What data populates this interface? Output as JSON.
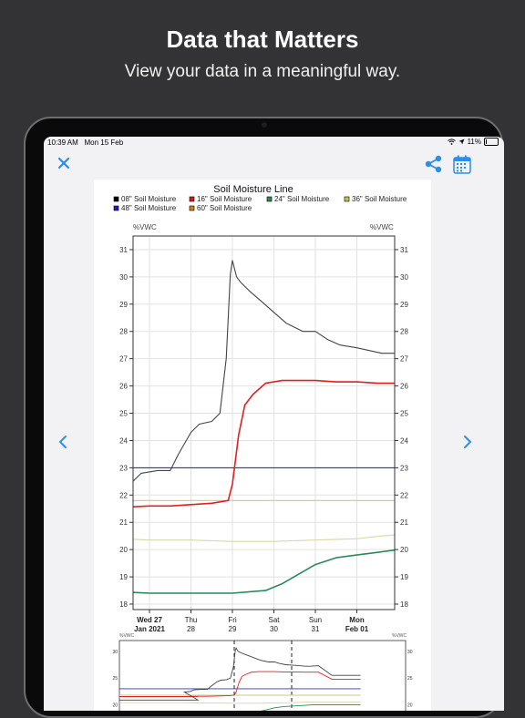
{
  "promo": {
    "title": "Data that Matters",
    "subtitle": "View your data in a meaningful way."
  },
  "status_bar": {
    "time": "10:39 AM",
    "date": "Mon 15 Feb",
    "battery": "11%",
    "battery_level": 0.11
  },
  "toolbar": {
    "close_icon": "close-icon",
    "share_icon": "share-icon",
    "calendar_icon": "calendar-icon",
    "prev_icon": "chevron-left-icon",
    "next_icon": "chevron-right-icon",
    "accent": "#2b8ee8"
  },
  "chart_data": {
    "type": "line",
    "title": "Soil Moisture Line",
    "ylabel_left": "%VWC",
    "ylabel_right": "%VWC",
    "ylim": [
      17.8,
      31.5
    ],
    "yticks": [
      18,
      19,
      20,
      21,
      22,
      23,
      24,
      25,
      26,
      27,
      28,
      29,
      30,
      31
    ],
    "xlim": [
      0,
      6.3
    ],
    "xticks": [
      {
        "x": 0,
        "label": "Wed 27",
        "sub": "Jan 2021",
        "bold": true
      },
      {
        "x": 1,
        "label": "Thu",
        "sub": "28",
        "bold": false
      },
      {
        "x": 2,
        "label": "Fri",
        "sub": "29",
        "bold": false
      },
      {
        "x": 3,
        "label": "Sat",
        "sub": "30",
        "bold": false
      },
      {
        "x": 4,
        "label": "Sun",
        "sub": "31",
        "bold": false
      },
      {
        "x": 5,
        "label": "Mon",
        "sub": "Feb 01",
        "bold": true
      }
    ],
    "grid": true,
    "legend_position": "top",
    "series": [
      {
        "name": "08\" Soil Moisture",
        "color": "#000000",
        "stroke": "#444444",
        "x": [
          -0.7,
          -0.4,
          -0.2,
          0.2,
          0.5,
          0.7,
          1.0,
          1.2,
          1.5,
          1.7,
          1.85,
          1.9,
          1.95,
          2.0,
          2.1,
          2.2,
          2.4,
          2.7,
          3.0,
          3.3,
          3.7,
          4.0,
          4.3,
          4.6,
          5.0,
          5.3,
          5.6,
          5.9,
          6.3
        ],
        "y": [
          22.4,
          22.5,
          22.8,
          22.9,
          22.9,
          23.5,
          24.3,
          24.6,
          24.7,
          25.0,
          27.0,
          28.5,
          30.1,
          30.6,
          30.0,
          29.8,
          29.5,
          29.1,
          28.7,
          28.3,
          28.0,
          28.0,
          27.7,
          27.5,
          27.4,
          27.3,
          27.2,
          27.2,
          27.3
        ]
      },
      {
        "name": "16\" Soil Moisture",
        "color": "#cc2020",
        "stroke": "#e02020",
        "x": [
          -0.7,
          0.0,
          0.5,
          1.0,
          1.5,
          1.9,
          2.0,
          2.15,
          2.3,
          2.5,
          2.8,
          3.2,
          3.6,
          4.0,
          4.5,
          5.0,
          5.5,
          6.0,
          6.3
        ],
        "y": [
          21.55,
          21.6,
          21.6,
          21.65,
          21.7,
          21.8,
          22.4,
          24.2,
          25.3,
          25.7,
          26.1,
          26.2,
          26.2,
          26.2,
          26.15,
          26.15,
          26.1,
          26.1,
          26.1
        ]
      },
      {
        "name": "24\" Soil Moisture",
        "color": "#2a8a5a",
        "stroke": "#2a8a5a",
        "x": [
          -0.7,
          0.0,
          1.0,
          2.0,
          2.8,
          3.2,
          3.6,
          4.0,
          4.5,
          5.0,
          5.5,
          6.0,
          6.3
        ],
        "y": [
          18.45,
          18.4,
          18.4,
          18.4,
          18.5,
          18.75,
          19.1,
          19.45,
          19.7,
          19.8,
          19.9,
          20.0,
          20.0
        ]
      },
      {
        "name": "36\" Soil Moisture",
        "color": "#c0c060",
        "stroke": "#c9c98a",
        "x": [
          -0.7,
          0.0,
          1.0,
          2.0,
          3.0,
          4.0,
          5.0,
          6.0,
          6.3
        ],
        "y": [
          21.8,
          21.8,
          21.8,
          21.8,
          21.8,
          21.8,
          21.8,
          21.8,
          21.8
        ]
      },
      {
        "name": "48\" Soil Moisture",
        "color": "#2020c0",
        "stroke": "#3030d0",
        "x": [
          -0.7,
          0.0,
          1.0,
          2.0,
          3.0,
          4.0,
          5.0,
          6.0,
          6.3
        ],
        "y": [
          23.0,
          23.0,
          23.0,
          23.0,
          23.0,
          23.0,
          23.0,
          23.0,
          23.0
        ]
      },
      {
        "name": "60\" Soil Moisture",
        "color": "#d08020",
        "stroke": "#d8d8a8",
        "x": [
          -0.7,
          0.0,
          1.0,
          2.0,
          3.0,
          4.0,
          5.0,
          5.6,
          6.0,
          6.3
        ],
        "y": [
          20.4,
          20.35,
          20.35,
          20.3,
          20.3,
          20.35,
          20.4,
          20.5,
          20.55,
          20.55
        ]
      }
    ]
  },
  "overview": {
    "unit_left": "%VWC",
    "unit_right": "%VWC",
    "yticks": [
      20,
      25,
      30
    ]
  }
}
